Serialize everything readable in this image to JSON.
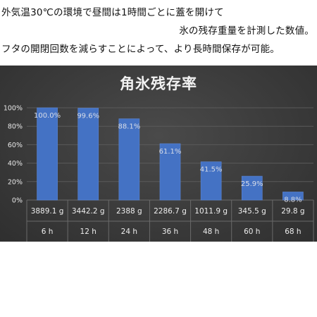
{
  "caption": {
    "line1": "外気温30℃の環境で昼間は1時間ごとに蓋を開けて",
    "line2": "氷の残存重量を計測した数値。",
    "line3": "フタの開閉回数を減らすことによって、より長時間保存が可能。"
  },
  "chart_data": {
    "type": "bar",
    "title": "角氷残存率",
    "xlabel": "",
    "ylabel": "",
    "ylim": [
      0,
      100
    ],
    "yticks": [
      "0%",
      "20%",
      "40%",
      "60%",
      "80%",
      "100%"
    ],
    "grid": true,
    "categories": [
      "6 h",
      "12 h",
      "24 h",
      "36 h",
      "48 h",
      "60 h",
      "68 h"
    ],
    "values": [
      100.0,
      99.6,
      88.1,
      61.1,
      41.5,
      25.9,
      8.8
    ],
    "value_labels": [
      "100.0%",
      "99.6%",
      "88.1%",
      "61.1%",
      "41.5%",
      "25.9%",
      "8.8%"
    ],
    "weights": [
      "3889.1 g",
      "3442.2 g",
      "2388 g",
      "2286.7 g",
      "1011.9 g",
      "345.5 g",
      "29.8 g"
    ],
    "colors": {
      "bar": "#4472c4",
      "bar_edge": "#5b86d6",
      "grid": "#5a5a5a",
      "background": "#3b3b3b"
    }
  }
}
